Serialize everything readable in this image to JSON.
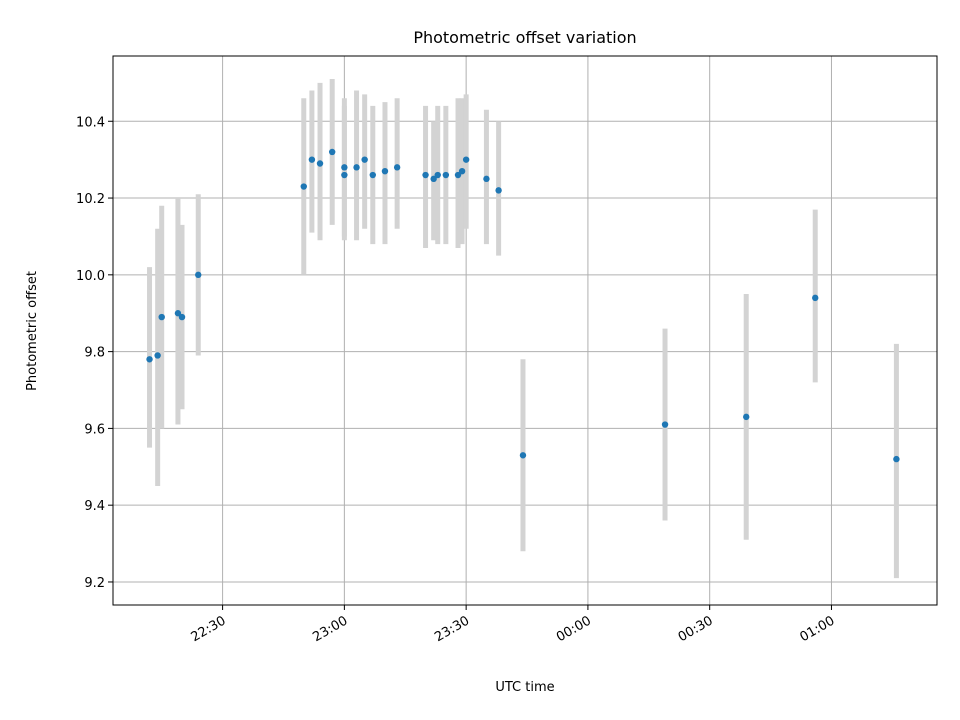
{
  "chart_data": {
    "type": "scatter",
    "title": "Photometric offset variation",
    "xlabel": "UTC time",
    "ylabel": "Photometric offset",
    "x_axis_type": "time",
    "x_tick_labels": [
      "22:30",
      "23:00",
      "23:30",
      "00:00",
      "00:30",
      "01:00"
    ],
    "y_tick_labels": [
      "9.2",
      "9.4",
      "9.6",
      "9.8",
      "10.0",
      "10.2",
      "10.4"
    ],
    "ylim": [
      9.14,
      10.57
    ],
    "xlim": [
      "22:03",
      "01:26"
    ],
    "grid": true,
    "colors": {
      "point": "#1f77b4",
      "errorbar": "#d3d3d3"
    },
    "series": [
      {
        "points": [
          {
            "t": "22:12",
            "y": 9.78,
            "lo": 9.55,
            "hi": 10.02
          },
          {
            "t": "22:14",
            "y": 9.79,
            "lo": 9.45,
            "hi": 10.12
          },
          {
            "t": "22:15",
            "y": 9.89,
            "lo": 9.6,
            "hi": 10.18
          },
          {
            "t": "22:19",
            "y": 9.9,
            "lo": 9.61,
            "hi": 10.2
          },
          {
            "t": "22:20",
            "y": 9.89,
            "lo": 9.65,
            "hi": 10.13
          },
          {
            "t": "22:24",
            "y": 10.0,
            "lo": 9.79,
            "hi": 10.21
          },
          {
            "t": "22:50",
            "y": 10.23,
            "lo": 10.0,
            "hi": 10.46
          },
          {
            "t": "22:52",
            "y": 10.3,
            "lo": 10.11,
            "hi": 10.48
          },
          {
            "t": "22:54",
            "y": 10.29,
            "lo": 10.09,
            "hi": 10.5
          },
          {
            "t": "22:57",
            "y": 10.32,
            "lo": 10.13,
            "hi": 10.51
          },
          {
            "t": "23:00",
            "y": 10.26,
            "lo": 10.09,
            "hi": 10.44
          },
          {
            "t": "23:00",
            "y": 10.28,
            "lo": 10.1,
            "hi": 10.46
          },
          {
            "t": "23:03",
            "y": 10.28,
            "lo": 10.09,
            "hi": 10.48
          },
          {
            "t": "23:05",
            "y": 10.3,
            "lo": 10.12,
            "hi": 10.47
          },
          {
            "t": "23:07",
            "y": 10.26,
            "lo": 10.08,
            "hi": 10.44
          },
          {
            "t": "23:10",
            "y": 10.27,
            "lo": 10.08,
            "hi": 10.45
          },
          {
            "t": "23:13",
            "y": 10.28,
            "lo": 10.12,
            "hi": 10.46
          },
          {
            "t": "23:20",
            "y": 10.26,
            "lo": 10.07,
            "hi": 10.44
          },
          {
            "t": "23:22",
            "y": 10.25,
            "lo": 10.09,
            "hi": 10.4
          },
          {
            "t": "23:23",
            "y": 10.26,
            "lo": 10.08,
            "hi": 10.44
          },
          {
            "t": "23:25",
            "y": 10.26,
            "lo": 10.08,
            "hi": 10.44
          },
          {
            "t": "23:28",
            "y": 10.26,
            "lo": 10.07,
            "hi": 10.46
          },
          {
            "t": "23:29",
            "y": 10.27,
            "lo": 10.08,
            "hi": 10.46
          },
          {
            "t": "23:30",
            "y": 10.3,
            "lo": 10.12,
            "hi": 10.47
          },
          {
            "t": "23:35",
            "y": 10.25,
            "lo": 10.08,
            "hi": 10.43
          },
          {
            "t": "23:38",
            "y": 10.22,
            "lo": 10.05,
            "hi": 10.4
          },
          {
            "t": "23:44",
            "y": 9.53,
            "lo": 9.28,
            "hi": 9.78
          },
          {
            "t": "00:19",
            "y": 9.61,
            "lo": 9.36,
            "hi": 9.86
          },
          {
            "t": "00:39",
            "y": 9.63,
            "lo": 9.31,
            "hi": 9.95
          },
          {
            "t": "00:56",
            "y": 9.94,
            "lo": 9.72,
            "hi": 10.17
          },
          {
            "t": "01:16",
            "y": 9.52,
            "lo": 9.21,
            "hi": 9.82
          }
        ]
      }
    ]
  }
}
